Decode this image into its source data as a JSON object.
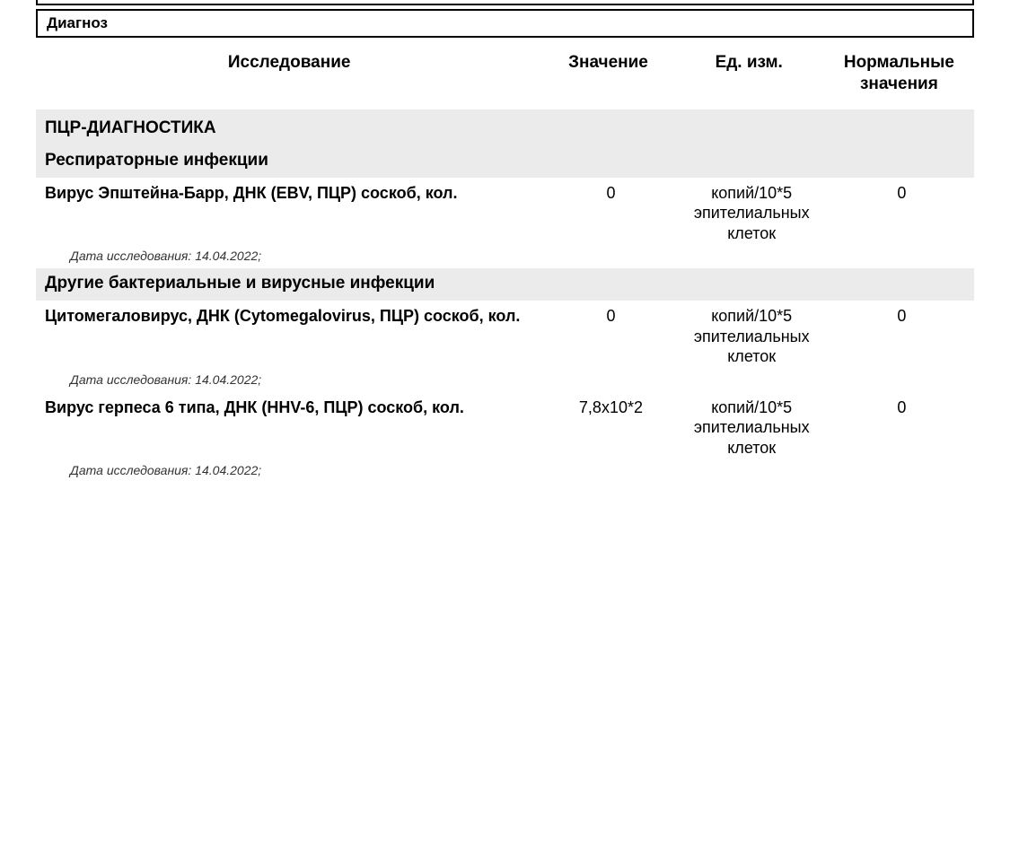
{
  "diagnosis_label": "Диагноз",
  "columns": {
    "test": "Исследование",
    "value": "Значение",
    "unit": "Ед. изм.",
    "norm": "Нормальные значения"
  },
  "section_title": "ПЦР-ДИАГНОСТИКА",
  "groups": [
    {
      "title": "Респираторные инфекции",
      "tests": [
        {
          "name": "Вирус Эпштейна-Барр, ДНК (EBV, ПЦР) соскоб, кол.",
          "value": "0",
          "unit": "копий/10*5 эпителиальных клеток",
          "norm": "0",
          "date": "Дата исследования: 14.04.2022;"
        }
      ]
    },
    {
      "title": "Другие бактериальные и вирусные инфекции",
      "tests": [
        {
          "name": "Цитомегаловирус, ДНК (Cytomegalovirus, ПЦР) соскоб, кол.",
          "value": "0",
          "unit": "копий/10*5 эпителиальных клеток",
          "norm": "0",
          "date": "Дата исследования: 14.04.2022;"
        },
        {
          "name": "Вирус герпеса 6 типа, ДНК (HHV-6, ПЦР) соскоб, кол.",
          "value": "7,8x10*2",
          "unit": "копий/10*5 эпителиальных клеток",
          "norm": "0",
          "date": "Дата исследования: 14.04.2022;"
        }
      ]
    }
  ],
  "colors": {
    "background": "#ffffff",
    "section_bg": "#ebebeb",
    "border": "#000000",
    "text": "#000000",
    "date_text": "#333333"
  },
  "typography": {
    "header_fontsize": 19,
    "section_fontsize": 19,
    "row_fontsize": 18,
    "date_fontsize": 14,
    "diagnosis_fontsize": 17
  },
  "layout": {
    "col_widths_pct": {
      "test": 54,
      "value": 14,
      "unit": 16,
      "norm": 16
    }
  }
}
